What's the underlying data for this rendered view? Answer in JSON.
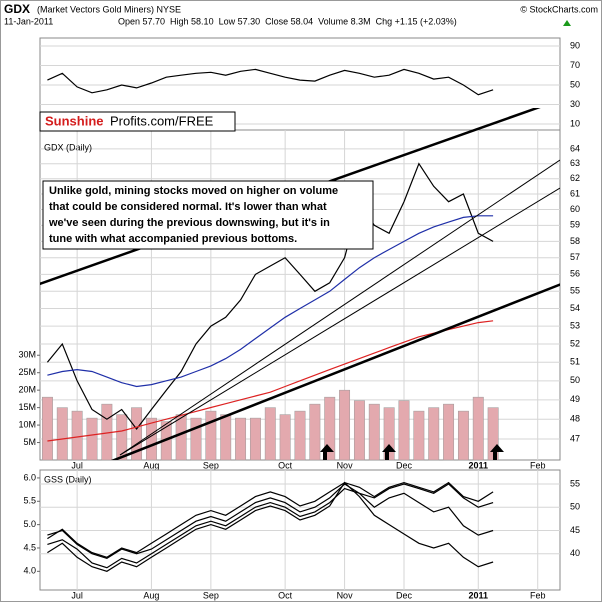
{
  "header": {
    "symbol": "GDX",
    "name": "(Market Vectors Gold Miners) NYSE",
    "source": "© StockCharts.com",
    "date": "11-Jan-2011",
    "quote": "Open 57.70  High 58.10  Low 57.30  Close 58.04  Volume 8.3M  Chg +1.15 (+2.03%)"
  },
  "logo": {
    "red": "Sunshine",
    "black": "Profits.com/FREE"
  },
  "annotation": [
    "Unlike gold, mining stocks moved on higher on volume",
    "that could be considered normal. It's lower than what",
    "we've seen during the previous downswing, but it's in",
    "tune with what accompanied previous bottoms."
  ],
  "chart_data": [
    {
      "type": "line",
      "categories": [
        null,
        null,
        "Jul",
        null,
        null,
        null,
        null,
        "Aug",
        null,
        null,
        null,
        "Sep",
        null,
        null,
        null,
        null,
        "Oct",
        null,
        null,
        null,
        "Nov",
        null,
        null,
        null,
        "Dec",
        null,
        null,
        null,
        null,
        "2011",
        null,
        null,
        null,
        "Feb",
        null
      ],
      "ylim": [
        3.8,
        98.2
      ],
      "yticks": [
        10,
        30,
        50,
        70,
        90
      ],
      "series": [
        {
          "color": "#000000",
          "values": [
            55,
            62,
            48,
            42,
            45,
            50,
            47,
            52,
            58,
            60,
            62,
            63,
            60,
            64,
            66,
            62,
            58,
            55,
            54,
            60,
            65,
            62,
            58,
            60,
            66,
            62,
            56,
            58,
            50,
            40,
            45,
            null,
            null,
            null,
            null
          ]
        }
      ]
    },
    {
      "type": "line",
      "title": "GDX (Daily)",
      "log": true,
      "ylim": [
        45.96,
        65.3
      ],
      "yticks": [
        47,
        48,
        49,
        50,
        51,
        52,
        53,
        54,
        55,
        56,
        57,
        58,
        59,
        60,
        61,
        62,
        63,
        64
      ],
      "y2lim": [
        0,
        94.5
      ],
      "y2ticks": [
        {
          "value": 5,
          "label": "5M"
        },
        {
          "value": 10,
          "label": "10M"
        },
        {
          "value": 15,
          "label": "15M"
        },
        {
          "value": 20,
          "label": "20M"
        },
        {
          "value": 25,
          "label": "25M"
        },
        {
          "value": 30,
          "label": "30M"
        }
      ],
      "series": [
        {
          "type": "bar",
          "axis": "y2",
          "color": "#e3a9ae",
          "values": [
            18,
            15,
            14,
            12,
            16,
            13,
            15,
            12,
            11,
            13,
            12,
            14,
            13,
            12,
            12,
            15,
            13,
            14,
            16,
            18,
            20,
            17,
            16,
            15,
            17,
            14,
            15,
            16,
            14,
            18,
            15,
            null,
            null,
            null,
            null
          ]
        },
        {
          "color": "#000000",
          "values": [
            51,
            52,
            50,
            48.5,
            48,
            48.5,
            47.5,
            48.5,
            49.5,
            50.5,
            52,
            53,
            53.5,
            54.5,
            56,
            56.5,
            57,
            56,
            55,
            55.5,
            57,
            60.5,
            59,
            58.5,
            60.5,
            63,
            61.5,
            60.5,
            61,
            58.5,
            58,
            null,
            null,
            null,
            null
          ]
        },
        {
          "color": "#1f2fa8",
          "values": [
            50.3,
            50.5,
            50.6,
            50.5,
            50.2,
            49.9,
            49.7,
            49.8,
            50.0,
            50.2,
            50.5,
            50.8,
            51.2,
            51.7,
            52.3,
            52.9,
            53.5,
            54.0,
            54.5,
            55.0,
            55.7,
            56.4,
            57.0,
            57.5,
            58.0,
            58.5,
            58.9,
            59.2,
            59.5,
            59.6,
            59.6,
            null,
            null,
            null,
            null
          ]
        },
        {
          "color": "#dd2222",
          "values": [
            46.9,
            47.0,
            47.1,
            47.2,
            47.3,
            47.4,
            47.6,
            47.8,
            48.0,
            48.2,
            48.4,
            48.6,
            48.8,
            49.0,
            49.2,
            49.4,
            49.7,
            50.0,
            50.3,
            50.6,
            50.9,
            51.2,
            51.5,
            51.8,
            52.1,
            52.4,
            52.6,
            52.8,
            53.0,
            53.2,
            53.3,
            null,
            null,
            null,
            null
          ]
        }
      ]
    },
    {
      "type": "line",
      "title": "GSS (Daily)",
      "ylim": [
        32.2,
        58
      ],
      "yticks": [
        40,
        45,
        50,
        55
      ],
      "y2lim": [
        3.6,
        6.17
      ],
      "y2ticks": [
        {
          "value": 4,
          "label": "4.0"
        },
        4.5,
        {
          "value": 5,
          "label": "5.0"
        },
        5.5,
        {
          "value": 6,
          "label": "6.0"
        }
      ],
      "series": [
        {
          "color": "#000000",
          "values": [
            42,
            43,
            41,
            38,
            37,
            39,
            38,
            40,
            42,
            44,
            46,
            47,
            46,
            48,
            50,
            51,
            50,
            48,
            49,
            51,
            54,
            53,
            52,
            54,
            55,
            54,
            53,
            55,
            52,
            50,
            51,
            null,
            null,
            null,
            null
          ]
        },
        {
          "color": "#000000",
          "values": [
            44,
            45,
            42,
            40,
            39,
            41,
            40,
            41,
            43,
            45,
            47,
            48,
            47,
            49,
            51,
            52,
            51,
            49,
            50,
            52,
            55,
            53,
            50,
            52,
            53,
            51,
            49,
            50,
            46,
            44,
            45,
            null,
            null,
            null,
            null
          ]
        },
        {
          "color": "#000000",
          "axis": "y2",
          "values": [
            4.4,
            4.6,
            4.3,
            4.1,
            4.0,
            4.2,
            4.1,
            4.3,
            4.5,
            4.7,
            4.9,
            5.0,
            4.9,
            5.1,
            5.3,
            5.4,
            5.3,
            5.1,
            5.2,
            5.4,
            5.9,
            5.6,
            5.2,
            5.0,
            4.8,
            4.6,
            4.5,
            4.6,
            4.3,
            4.1,
            4.2,
            null,
            null,
            null,
            null
          ]
        },
        {
          "color": "#000000",
          "axis": "y2",
          "values": [
            4.7,
            4.9,
            4.6,
            4.4,
            4.3,
            4.5,
            4.4,
            4.6,
            4.8,
            5.0,
            5.2,
            5.3,
            5.2,
            5.4,
            5.6,
            5.7,
            5.6,
            5.4,
            5.5,
            5.7,
            5.9,
            5.8,
            5.6,
            5.8,
            5.9,
            5.8,
            5.7,
            5.9,
            5.6,
            5.5,
            5.7,
            null,
            null,
            null,
            null
          ]
        }
      ]
    }
  ]
}
